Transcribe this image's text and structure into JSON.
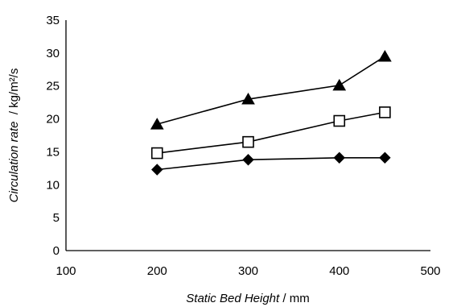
{
  "chart_data": {
    "type": "line",
    "title": "",
    "xlabel_italic": "Static Bed Height",
    "xlabel_unit": " / mm",
    "ylabel_italic": "Circulation rate",
    "ylabel_unit": "  / kg/m²/s",
    "xlim": [
      100,
      500
    ],
    "ylim": [
      0,
      35
    ],
    "x_ticks": [
      100,
      200,
      300,
      400,
      500
    ],
    "y_ticks": [
      0,
      5,
      10,
      15,
      20,
      25,
      30,
      35
    ],
    "grid": false,
    "legend": "none",
    "series": [
      {
        "marker": "triangle-filled",
        "color": "#000000",
        "x": [
          200,
          300,
          400,
          450
        ],
        "y": [
          19.2,
          23.0,
          25.1,
          29.5
        ]
      },
      {
        "marker": "square-open",
        "color": "#000000",
        "x": [
          200,
          300,
          400,
          450
        ],
        "y": [
          14.8,
          16.5,
          19.7,
          21.0
        ]
      },
      {
        "marker": "diamond-filled",
        "color": "#000000",
        "x": [
          200,
          300,
          400,
          450
        ],
        "y": [
          12.3,
          13.8,
          14.1,
          14.1
        ]
      }
    ]
  }
}
